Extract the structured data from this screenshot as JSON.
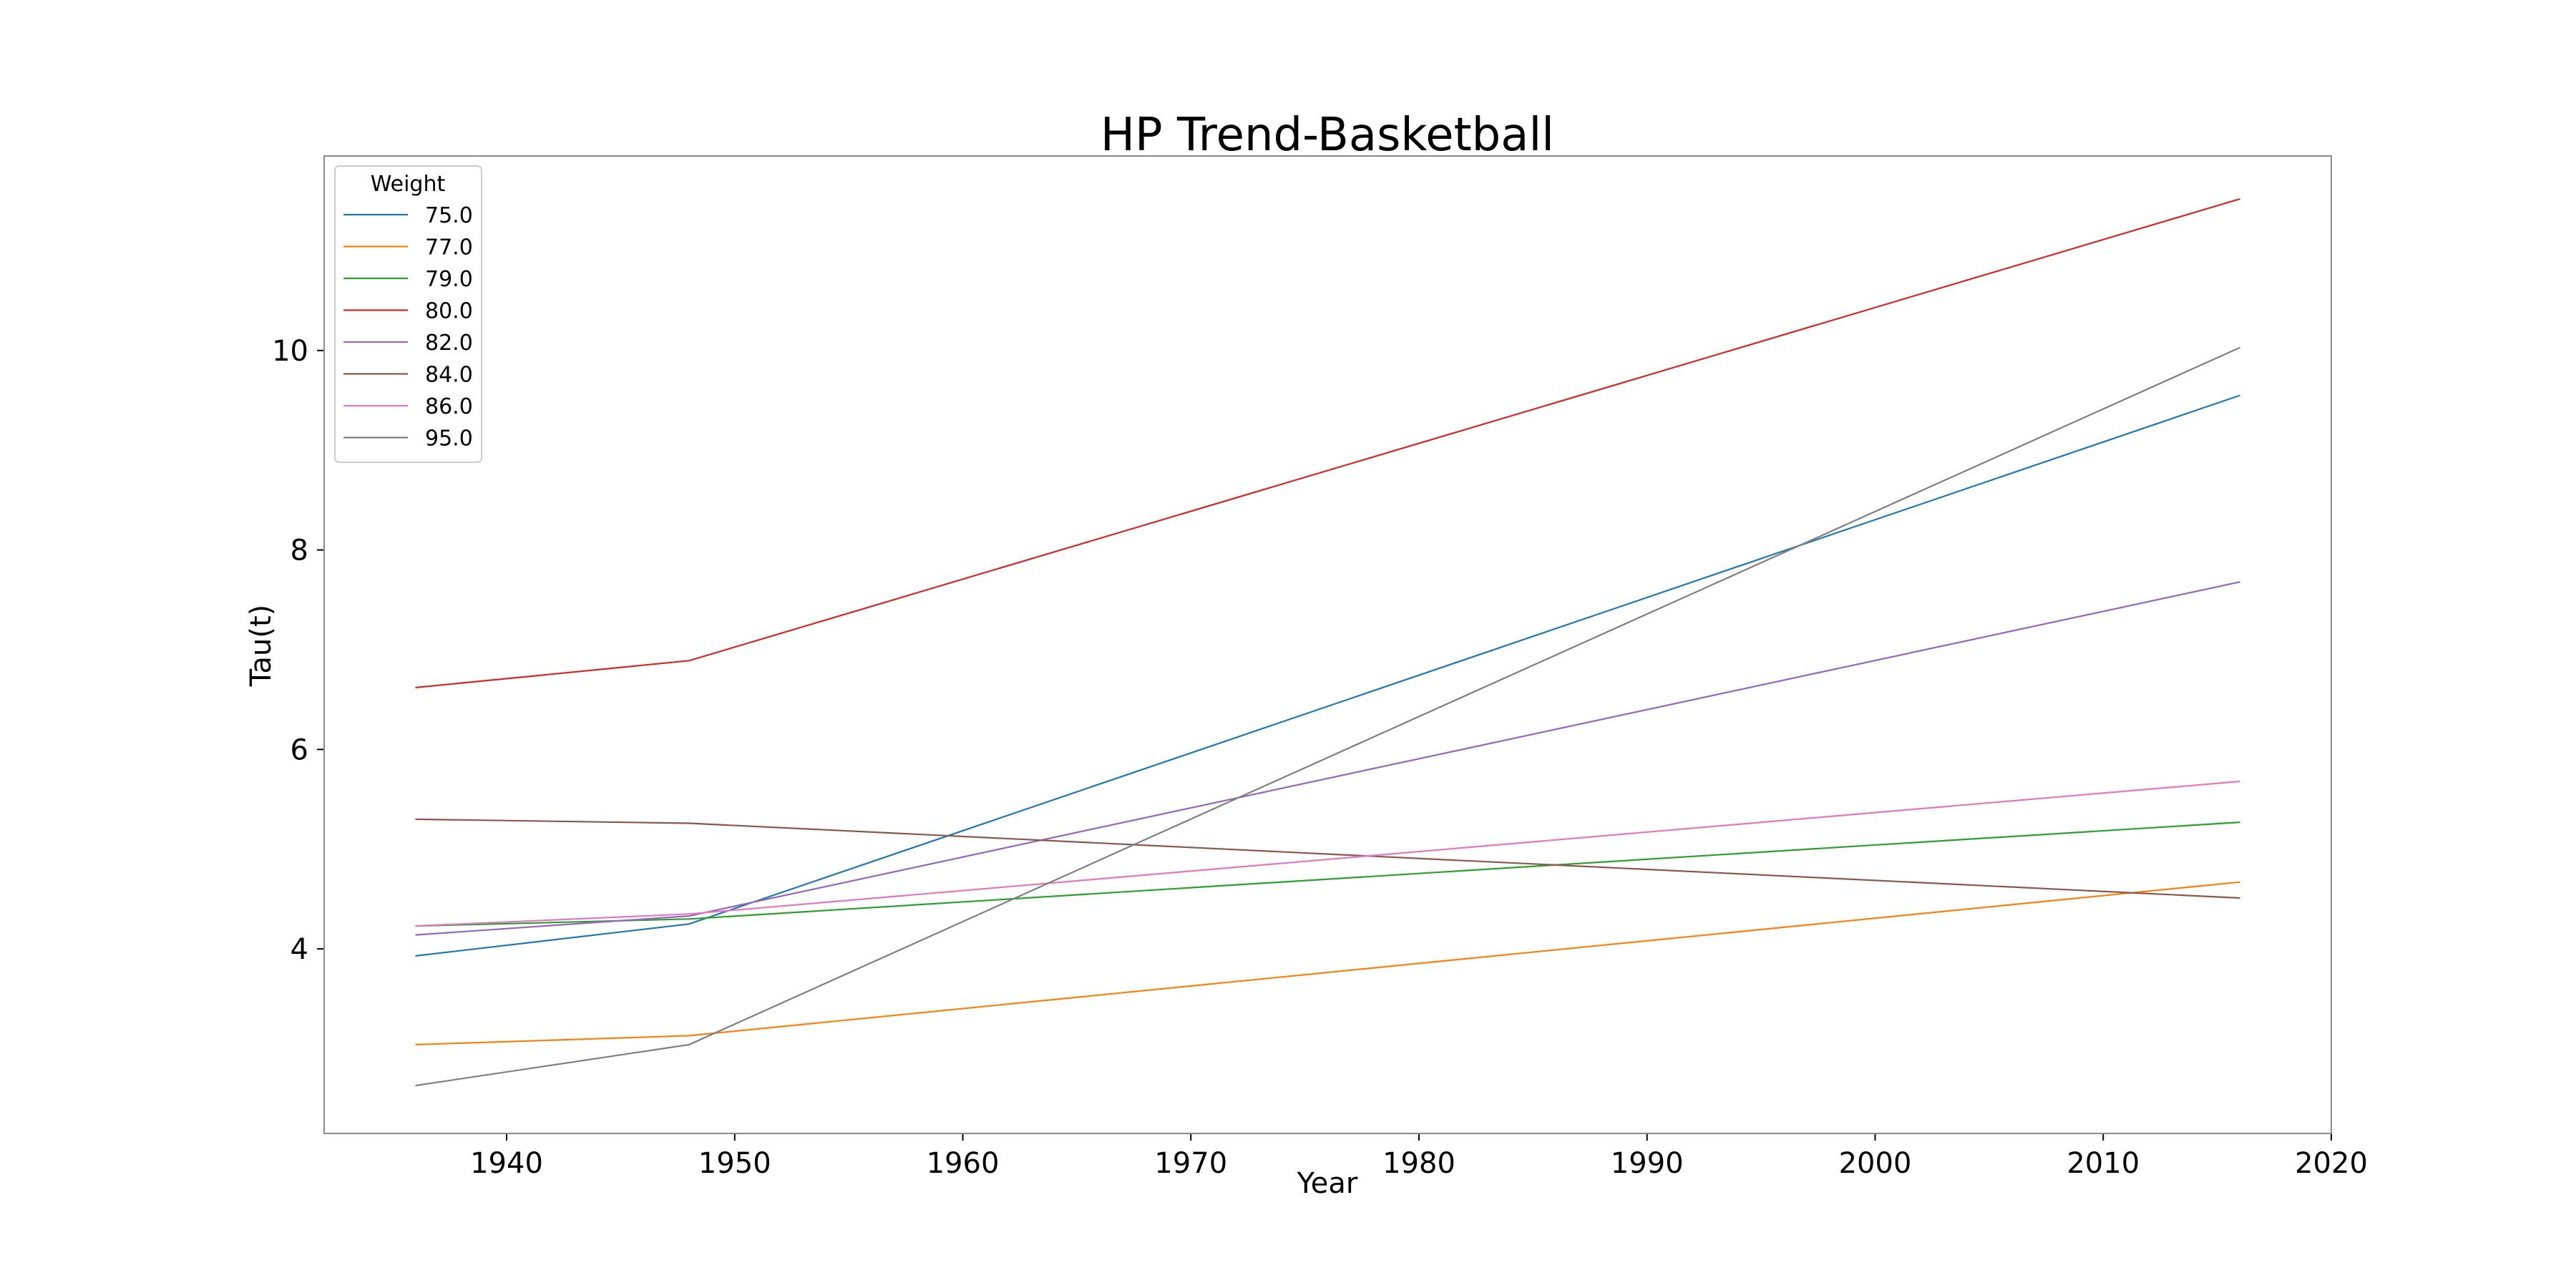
{
  "chart_data": {
    "type": "line",
    "title": "HP Trend-Basketball",
    "xlabel": "Year",
    "ylabel": "Tau(t)",
    "xlim": [
      1932,
      2020
    ],
    "ylim": [
      2.15,
      11.95
    ],
    "xticks": [
      1940,
      1950,
      1960,
      1970,
      1980,
      1990,
      2000,
      2010,
      2020
    ],
    "yticks": [
      4,
      6,
      8,
      10
    ],
    "x": [
      1936,
      1948,
      2016
    ],
    "grid": false,
    "legend": {
      "title": "Weight",
      "position": "top-left"
    },
    "series": [
      {
        "name": "75.0",
        "color": "#1f77b4",
        "values": [
          3.93,
          4.25,
          9.55
        ]
      },
      {
        "name": "77.0",
        "color": "#ff7f0e",
        "values": [
          3.04,
          3.13,
          4.67
        ]
      },
      {
        "name": "79.0",
        "color": "#2ca02c",
        "values": [
          4.23,
          4.3,
          5.27
        ]
      },
      {
        "name": "80.0",
        "color": "#d62728",
        "values": [
          6.62,
          6.89,
          11.52
        ]
      },
      {
        "name": "82.0",
        "color": "#9467bd",
        "values": [
          4.14,
          4.33,
          7.68
        ]
      },
      {
        "name": "84.0",
        "color": "#8c564b",
        "values": [
          5.3,
          5.26,
          4.51
        ]
      },
      {
        "name": "86.0",
        "color": "#e377c2",
        "values": [
          4.23,
          4.35,
          5.68
        ]
      },
      {
        "name": "95.0",
        "color": "#7f7f7f",
        "values": [
          2.63,
          3.04,
          10.03
        ]
      }
    ]
  }
}
